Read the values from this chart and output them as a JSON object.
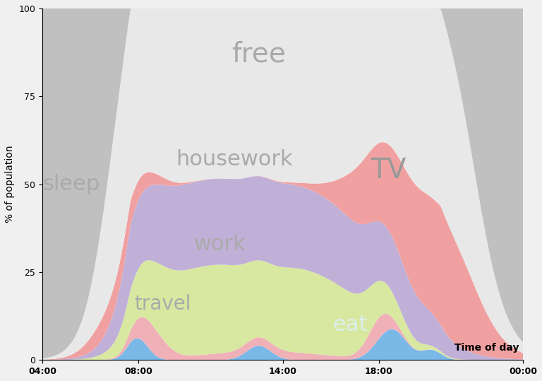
{
  "x_ticks": [
    "04:00",
    "08:00",
    "14:00",
    "18:00",
    "00:00"
  ],
  "x_tick_positions": [
    0,
    24,
    60,
    84,
    120
  ],
  "x_total": 120,
  "ylabel": "% of population",
  "xlabel": "Time of day",
  "ylim": [
    0,
    100
  ],
  "colors": {
    "eat": "#7ab8e8",
    "travel": "#f0b0b8",
    "work": "#d8e8a0",
    "housework": "#c0b0d8",
    "tv": "#f0a0a0",
    "free": "#e8e8e8",
    "sleep": "#c0c0c0"
  },
  "labels": {
    "free": {
      "xf": 0.45,
      "y": 87,
      "fs": 28,
      "color": "#aaaaaa"
    },
    "sleep": {
      "xf": 0.06,
      "y": 50,
      "fs": 22,
      "color": "#aaaaaa"
    },
    "housework": {
      "xf": 0.4,
      "y": 57,
      "fs": 22,
      "color": "#aaaaaa"
    },
    "TV": {
      "xf": 0.72,
      "y": 54,
      "fs": 28,
      "color": "#999999"
    },
    "work": {
      "xf": 0.37,
      "y": 33,
      "fs": 22,
      "color": "#aaaaaa"
    },
    "travel": {
      "xf": 0.25,
      "y": 16,
      "fs": 20,
      "color": "#aaaaaa"
    },
    "eat": {
      "xf": 0.64,
      "y": 10,
      "fs": 22,
      "color": "#ddeeee"
    }
  }
}
